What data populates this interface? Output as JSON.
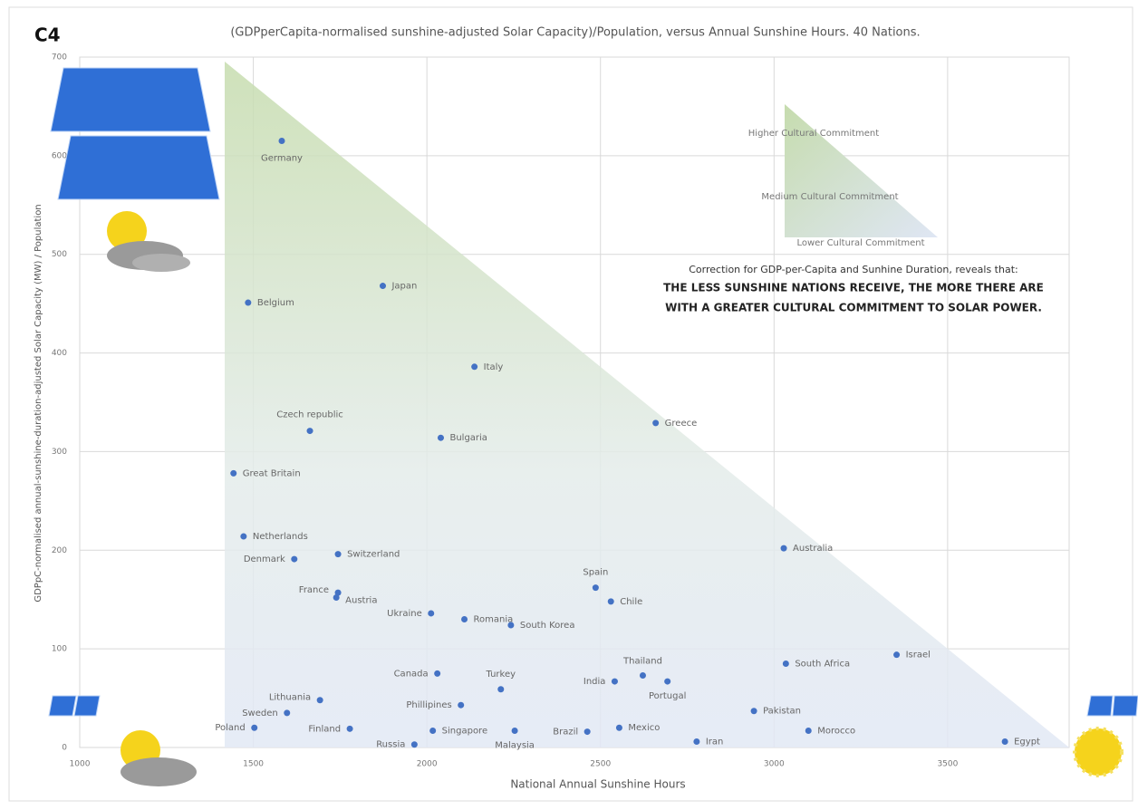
{
  "chart_data": {
    "type": "scatter",
    "panel_label": "C4",
    "title": "(GDPperCapita-normalised sunshine-adjusted Solar Capacity)/Population, versus Annual Sunshine Hours. 40 Nations.",
    "x_label": "National Annual Sunshine Hours",
    "y_label": "GDPpC-normalised annual-sunshine-duration-adjusted Solar Capacity (MW) / Population",
    "legend": [
      "Higher Cultural Commitment",
      "Medium Cultural Commitment",
      "Lower Cultural Commitment"
    ],
    "annotation": [
      "Correction for GDP-per-Capita and Sunhine Duration, reveals that:",
      "THE LESS SUNSHINE NATIONS RECEIVE, THE MORE THERE ARE",
      "WITH A GREATER CULTURAL COMMITMENT TO SOLAR POWER."
    ],
    "color": "#4472c4",
    "xlim": [
      1000,
      3850
    ],
    "xticks": [
      1000,
      1500,
      2000,
      2500,
      3000,
      3500
    ],
    "ylim": [
      0,
      700
    ],
    "yticks": [
      0,
      100,
      200,
      300,
      400,
      500,
      600,
      700
    ],
    "grid": true,
    "labels": [
      "Germany",
      "Japan",
      "Belgium",
      "Italy",
      "Czech republic",
      "Bulgaria",
      "Greece",
      "Great Britain",
      "Netherlands",
      "Denmark",
      "Switzerland",
      "Australia",
      "France",
      "Austria",
      "Spain",
      "Chile",
      "Ukraine",
      "Romania",
      "South Korea",
      "Israel",
      "South Africa",
      "Canada",
      "Thailand",
      "India",
      "Portugal",
      "Turkey",
      "Lithuania",
      "Phillipines",
      "Pakistan",
      "Sweden",
      "Poland",
      "Finland",
      "Singapore",
      "Malaysia",
      "Brazil",
      "Mexico",
      "Morocco",
      "Iran",
      "Russia",
      "Egypt"
    ],
    "x": [
      1582,
      1873,
      1485,
      2137,
      1663,
      2040,
      2659,
      1443,
      1472,
      1618,
      1744,
      3028,
      1744,
      1739,
      2486,
      2530,
      2012,
      2108,
      2242,
      3353,
      3034,
      2030,
      2622,
      2541,
      2693,
      2213,
      1692,
      2098,
      2942,
      1597,
      1503,
      1778,
      2017,
      2253,
      2462,
      2554,
      3099,
      2777,
      1964,
      3665
    ],
    "y": [
      615,
      468,
      451,
      386,
      321,
      314,
      329,
      278,
      214,
      191,
      196,
      202,
      157,
      152,
      162,
      148,
      136,
      130,
      124,
      94,
      85,
      75,
      73,
      67,
      67,
      59,
      48,
      43,
      37,
      35,
      20,
      19,
      17,
      17,
      16,
      20,
      17,
      6,
      3,
      6
    ]
  }
}
